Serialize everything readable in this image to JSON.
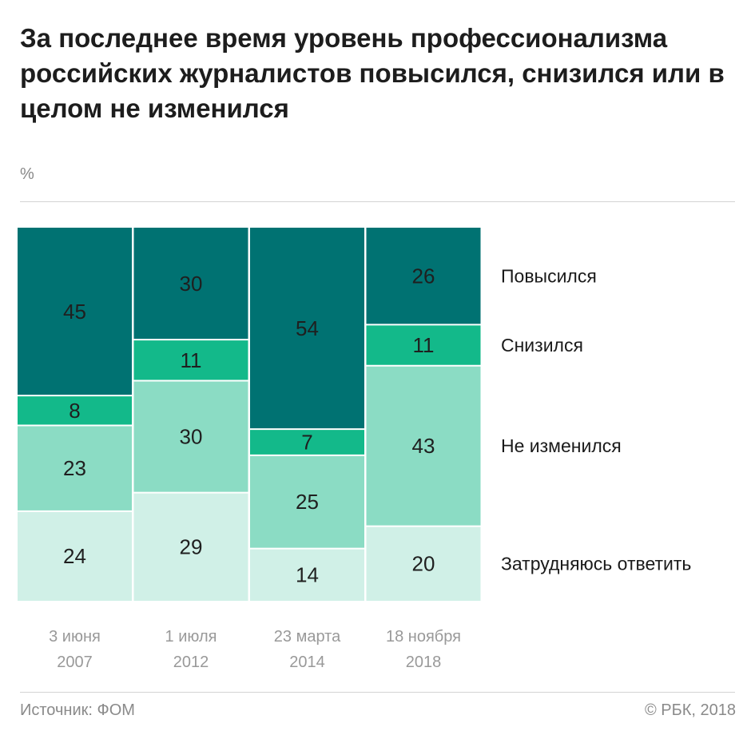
{
  "header": {
    "title": "За последнее время уровень профессионализма российских журналистов повысился, снизился или в целом не изменился",
    "unit": "%"
  },
  "footer": {
    "source": "Источник: ФОМ",
    "copyright": "© РБК, 2018"
  },
  "colors": {
    "Повысился": "#007272",
    "Снизился": "#13b98a",
    "Не изменился": "#8bdcc4",
    "Затрудняюсь ответить": "#d0f0e7"
  },
  "chart_data": {
    "type": "bar",
    "stacked": true,
    "normalized": true,
    "categories": [
      [
        "3 июня",
        "2007"
      ],
      [
        "1 июля",
        "2012"
      ],
      [
        "23 марта",
        "2014"
      ],
      [
        "18 ноября",
        "2018"
      ]
    ],
    "series": [
      {
        "name": "Повысился",
        "values": [
          45,
          30,
          54,
          26
        ]
      },
      {
        "name": "Снизился",
        "values": [
          8,
          11,
          7,
          11
        ]
      },
      {
        "name": "Не изменился",
        "values": [
          23,
          30,
          25,
          43
        ]
      },
      {
        "name": "Затрудняюсь ответить",
        "values": [
          24,
          29,
          14,
          20
        ]
      }
    ],
    "ylim": [
      0,
      100
    ],
    "legend": "right",
    "grid": false
  }
}
